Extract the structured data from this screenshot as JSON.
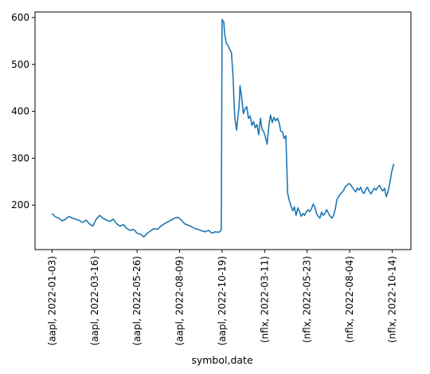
{
  "chart_data": {
    "type": "line",
    "title": "",
    "xlabel": "symbol,date",
    "ylabel": "",
    "ylim": [
      105,
      612
    ],
    "yticks": [
      200,
      300,
      400,
      500,
      600
    ],
    "xtick_labels": [
      "(aapl, 2022-01-03)",
      "(aapl, 2022-03-16)",
      "(aapl, 2022-05-26)",
      "(aapl, 2022-08-09)",
      "(aapl, 2022-10-19)",
      "(nflx, 2022-03-11)",
      "(nflx, 2022-05-23)",
      "(nflx, 2022-08-04)",
      "(nflx, 2022-10-14)"
    ],
    "xtick_positions": [
      0,
      50,
      100,
      150,
      200,
      250,
      300,
      350,
      400
    ],
    "grid": false,
    "series": [
      {
        "color": "#1f77b4",
        "points": [
          [
            0,
            182
          ],
          [
            4,
            175
          ],
          [
            8,
            172
          ],
          [
            12,
            166
          ],
          [
            16,
            170
          ],
          [
            20,
            176
          ],
          [
            24,
            172
          ],
          [
            28,
            170
          ],
          [
            32,
            167
          ],
          [
            36,
            163
          ],
          [
            40,
            168
          ],
          [
            44,
            160
          ],
          [
            48,
            155
          ],
          [
            52,
            170
          ],
          [
            56,
            178
          ],
          [
            60,
            172
          ],
          [
            64,
            168
          ],
          [
            68,
            165
          ],
          [
            72,
            170
          ],
          [
            76,
            160
          ],
          [
            80,
            155
          ],
          [
            84,
            158
          ],
          [
            88,
            150
          ],
          [
            92,
            146
          ],
          [
            96,
            148
          ],
          [
            100,
            140
          ],
          [
            104,
            138
          ],
          [
            108,
            132
          ],
          [
            112,
            140
          ],
          [
            116,
            145
          ],
          [
            120,
            150
          ],
          [
            124,
            148
          ],
          [
            128,
            155
          ],
          [
            132,
            160
          ],
          [
            136,
            164
          ],
          [
            140,
            168
          ],
          [
            144,
            172
          ],
          [
            148,
            174
          ],
          [
            152,
            168
          ],
          [
            156,
            160
          ],
          [
            160,
            157
          ],
          [
            164,
            154
          ],
          [
            168,
            150
          ],
          [
            172,
            148
          ],
          [
            176,
            145
          ],
          [
            180,
            143
          ],
          [
            184,
            146
          ],
          [
            188,
            140
          ],
          [
            192,
            143
          ],
          [
            196,
            142
          ],
          [
            198,
            145
          ],
          [
            199,
            148
          ],
          [
            200,
            596
          ],
          [
            202,
            590
          ],
          [
            203,
            565
          ],
          [
            205,
            545
          ],
          [
            207,
            540
          ],
          [
            209,
            532
          ],
          [
            211,
            525
          ],
          [
            213,
            470
          ],
          [
            214,
            420
          ],
          [
            215,
            385
          ],
          [
            217,
            360
          ],
          [
            219,
            395
          ],
          [
            220,
            410
          ],
          [
            221,
            455
          ],
          [
            223,
            430
          ],
          [
            225,
            395
          ],
          [
            227,
            405
          ],
          [
            229,
            410
          ],
          [
            231,
            385
          ],
          [
            233,
            390
          ],
          [
            235,
            370
          ],
          [
            237,
            378
          ],
          [
            239,
            365
          ],
          [
            241,
            372
          ],
          [
            243,
            350
          ],
          [
            245,
            385
          ],
          [
            247,
            362
          ],
          [
            249,
            356
          ],
          [
            251,
            345
          ],
          [
            253,
            330
          ],
          [
            255,
            370
          ],
          [
            257,
            392
          ],
          [
            259,
            376
          ],
          [
            261,
            387
          ],
          [
            263,
            380
          ],
          [
            265,
            385
          ],
          [
            267,
            376
          ],
          [
            269,
            358
          ],
          [
            271,
            356
          ],
          [
            273,
            342
          ],
          [
            275,
            348
          ],
          [
            277,
            226
          ],
          [
            279,
            210
          ],
          [
            281,
            198
          ],
          [
            283,
            188
          ],
          [
            285,
            196
          ],
          [
            287,
            178
          ],
          [
            289,
            194
          ],
          [
            291,
            186
          ],
          [
            293,
            176
          ],
          [
            295,
            182
          ],
          [
            297,
            178
          ],
          [
            299,
            186
          ],
          [
            301,
            190
          ],
          [
            303,
            186
          ],
          [
            305,
            192
          ],
          [
            307,
            202
          ],
          [
            309,
            196
          ],
          [
            311,
            182
          ],
          [
            313,
            176
          ],
          [
            315,
            172
          ],
          [
            317,
            185
          ],
          [
            319,
            178
          ],
          [
            321,
            182
          ],
          [
            323,
            190
          ],
          [
            325,
            183
          ],
          [
            327,
            176
          ],
          [
            329,
            172
          ],
          [
            331,
            178
          ],
          [
            333,
            191
          ],
          [
            335,
            212
          ],
          [
            337,
            218
          ],
          [
            339,
            224
          ],
          [
            341,
            227
          ],
          [
            343,
            232
          ],
          [
            345,
            240
          ],
          [
            347,
            242
          ],
          [
            349,
            246
          ],
          [
            351,
            244
          ],
          [
            353,
            238
          ],
          [
            355,
            233
          ],
          [
            357,
            228
          ],
          [
            359,
            236
          ],
          [
            361,
            232
          ],
          [
            363,
            238
          ],
          [
            365,
            228
          ],
          [
            367,
            225
          ],
          [
            369,
            234
          ],
          [
            371,
            238
          ],
          [
            373,
            229
          ],
          [
            375,
            224
          ],
          [
            377,
            230
          ],
          [
            379,
            236
          ],
          [
            381,
            232
          ],
          [
            383,
            238
          ],
          [
            385,
            242
          ],
          [
            387,
            235
          ],
          [
            389,
            230
          ],
          [
            391,
            236
          ],
          [
            393,
            218
          ],
          [
            395,
            228
          ],
          [
            397,
            245
          ],
          [
            398,
            255
          ],
          [
            399,
            268
          ],
          [
            400,
            275
          ],
          [
            401,
            282
          ],
          [
            402,
            288
          ]
        ]
      }
    ]
  }
}
